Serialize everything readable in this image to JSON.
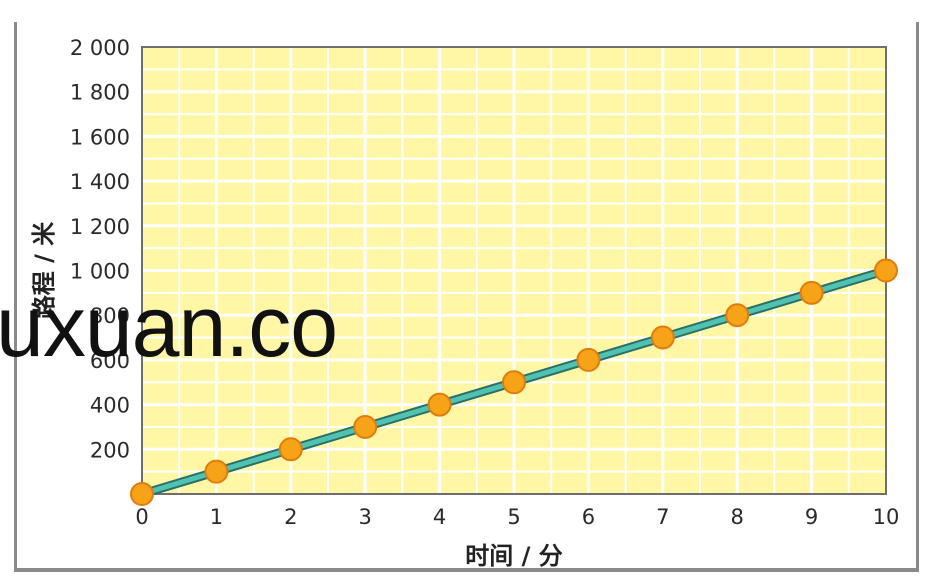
{
  "chart_data": {
    "type": "line",
    "xlabel": "时间 / 分",
    "ylabel": "路程 / 米",
    "x": [
      0,
      1,
      2,
      3,
      4,
      5,
      6,
      7,
      8,
      9,
      10
    ],
    "series": [
      {
        "values": [
          0,
          100,
          200,
          300,
          400,
          500,
          600,
          700,
          800,
          900,
          1000
        ]
      }
    ],
    "xlim": [
      0,
      10
    ],
    "ylim": [
      0,
      2000
    ],
    "x_ticks": [
      "0",
      "1",
      "2",
      "3",
      "4",
      "5",
      "6",
      "7",
      "8",
      "9",
      "10"
    ],
    "y_ticks": [
      "200",
      "400",
      "600",
      "800",
      "1 000",
      "1 200",
      "1 400",
      "1 600",
      "1 800",
      "2 000"
    ],
    "grid": true,
    "colors": {
      "plot_background": "#fff7a6",
      "grid": "#ffffff",
      "line": "#4fc3b0",
      "line_edge": "#2b6f6a",
      "marker": "#f7a318",
      "marker_edge": "#e07b0c",
      "frame": "#6e6e6e"
    }
  },
  "watermark": "uxuan.co"
}
